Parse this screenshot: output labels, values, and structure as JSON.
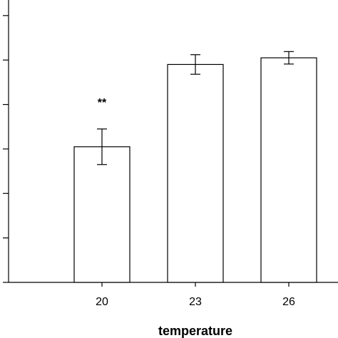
{
  "chart_data": {
    "type": "bar",
    "categories": [
      "20",
      "23",
      "26"
    ],
    "values": [
      3.05,
      4.9,
      5.05
    ],
    "errors": [
      0.4,
      0.22,
      0.14
    ],
    "annotations": [
      {
        "category": "20",
        "text": "**"
      }
    ],
    "xlabel": "temperature",
    "ylabel": "",
    "ylim": [
      0,
      6.35
    ],
    "ytick_values": [
      0,
      1,
      2,
      3,
      4,
      5,
      6
    ],
    "ytick_labels_visible": false,
    "grid": false,
    "colors": {
      "bar_fill": "#ffffff",
      "bar_stroke": "#000000",
      "axis": "#000000"
    }
  }
}
